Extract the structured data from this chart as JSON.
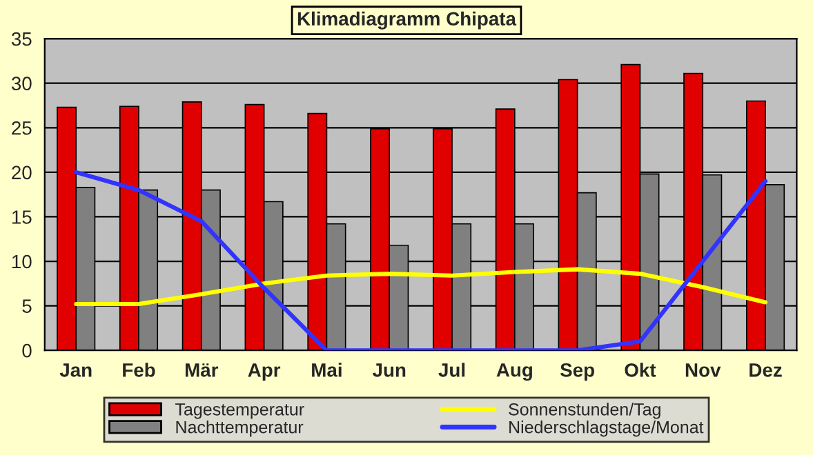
{
  "chart_data": {
    "type": "bar",
    "title": "Klimadiagramm Chipata",
    "categories": [
      "Jan",
      "Feb",
      "Mär",
      "Apr",
      "Mai",
      "Jun",
      "Jul",
      "Aug",
      "Sep",
      "Okt",
      "Nov",
      "Dez"
    ],
    "series": [
      {
        "name": "Tagestemperatur",
        "color": "#e00000",
        "values": [
          27.3,
          27.4,
          27.9,
          27.6,
          26.6,
          24.9,
          24.9,
          27.1,
          30.4,
          32.1,
          31.1,
          28.0
        ]
      },
      {
        "name": "Nachttemperatur",
        "color": "#808080",
        "values": [
          18.3,
          18.0,
          18.0,
          16.7,
          14.2,
          11.8,
          14.2,
          14.2,
          17.7,
          19.8,
          19.7,
          18.6
        ]
      },
      {
        "name": "Sonnenstunden/Tag",
        "type": "line",
        "color": "#ffff00",
        "values": [
          5.2,
          5.2,
          6.3,
          7.5,
          8.4,
          8.6,
          8.4,
          8.8,
          9.1,
          8.6,
          7.1,
          5.4
        ]
      },
      {
        "name": "Niederschlagstage/Monat",
        "type": "line",
        "color": "#3333ff",
        "values": [
          20,
          18,
          14.5,
          7,
          0,
          0,
          0,
          0,
          0,
          1,
          10,
          19
        ]
      }
    ],
    "ylim": [
      0,
      35
    ],
    "yticks": [
      0,
      5,
      10,
      15,
      20,
      25,
      30,
      35
    ],
    "grid": "y",
    "legend": "bottom",
    "marker": "none",
    "line_style": "solid"
  }
}
